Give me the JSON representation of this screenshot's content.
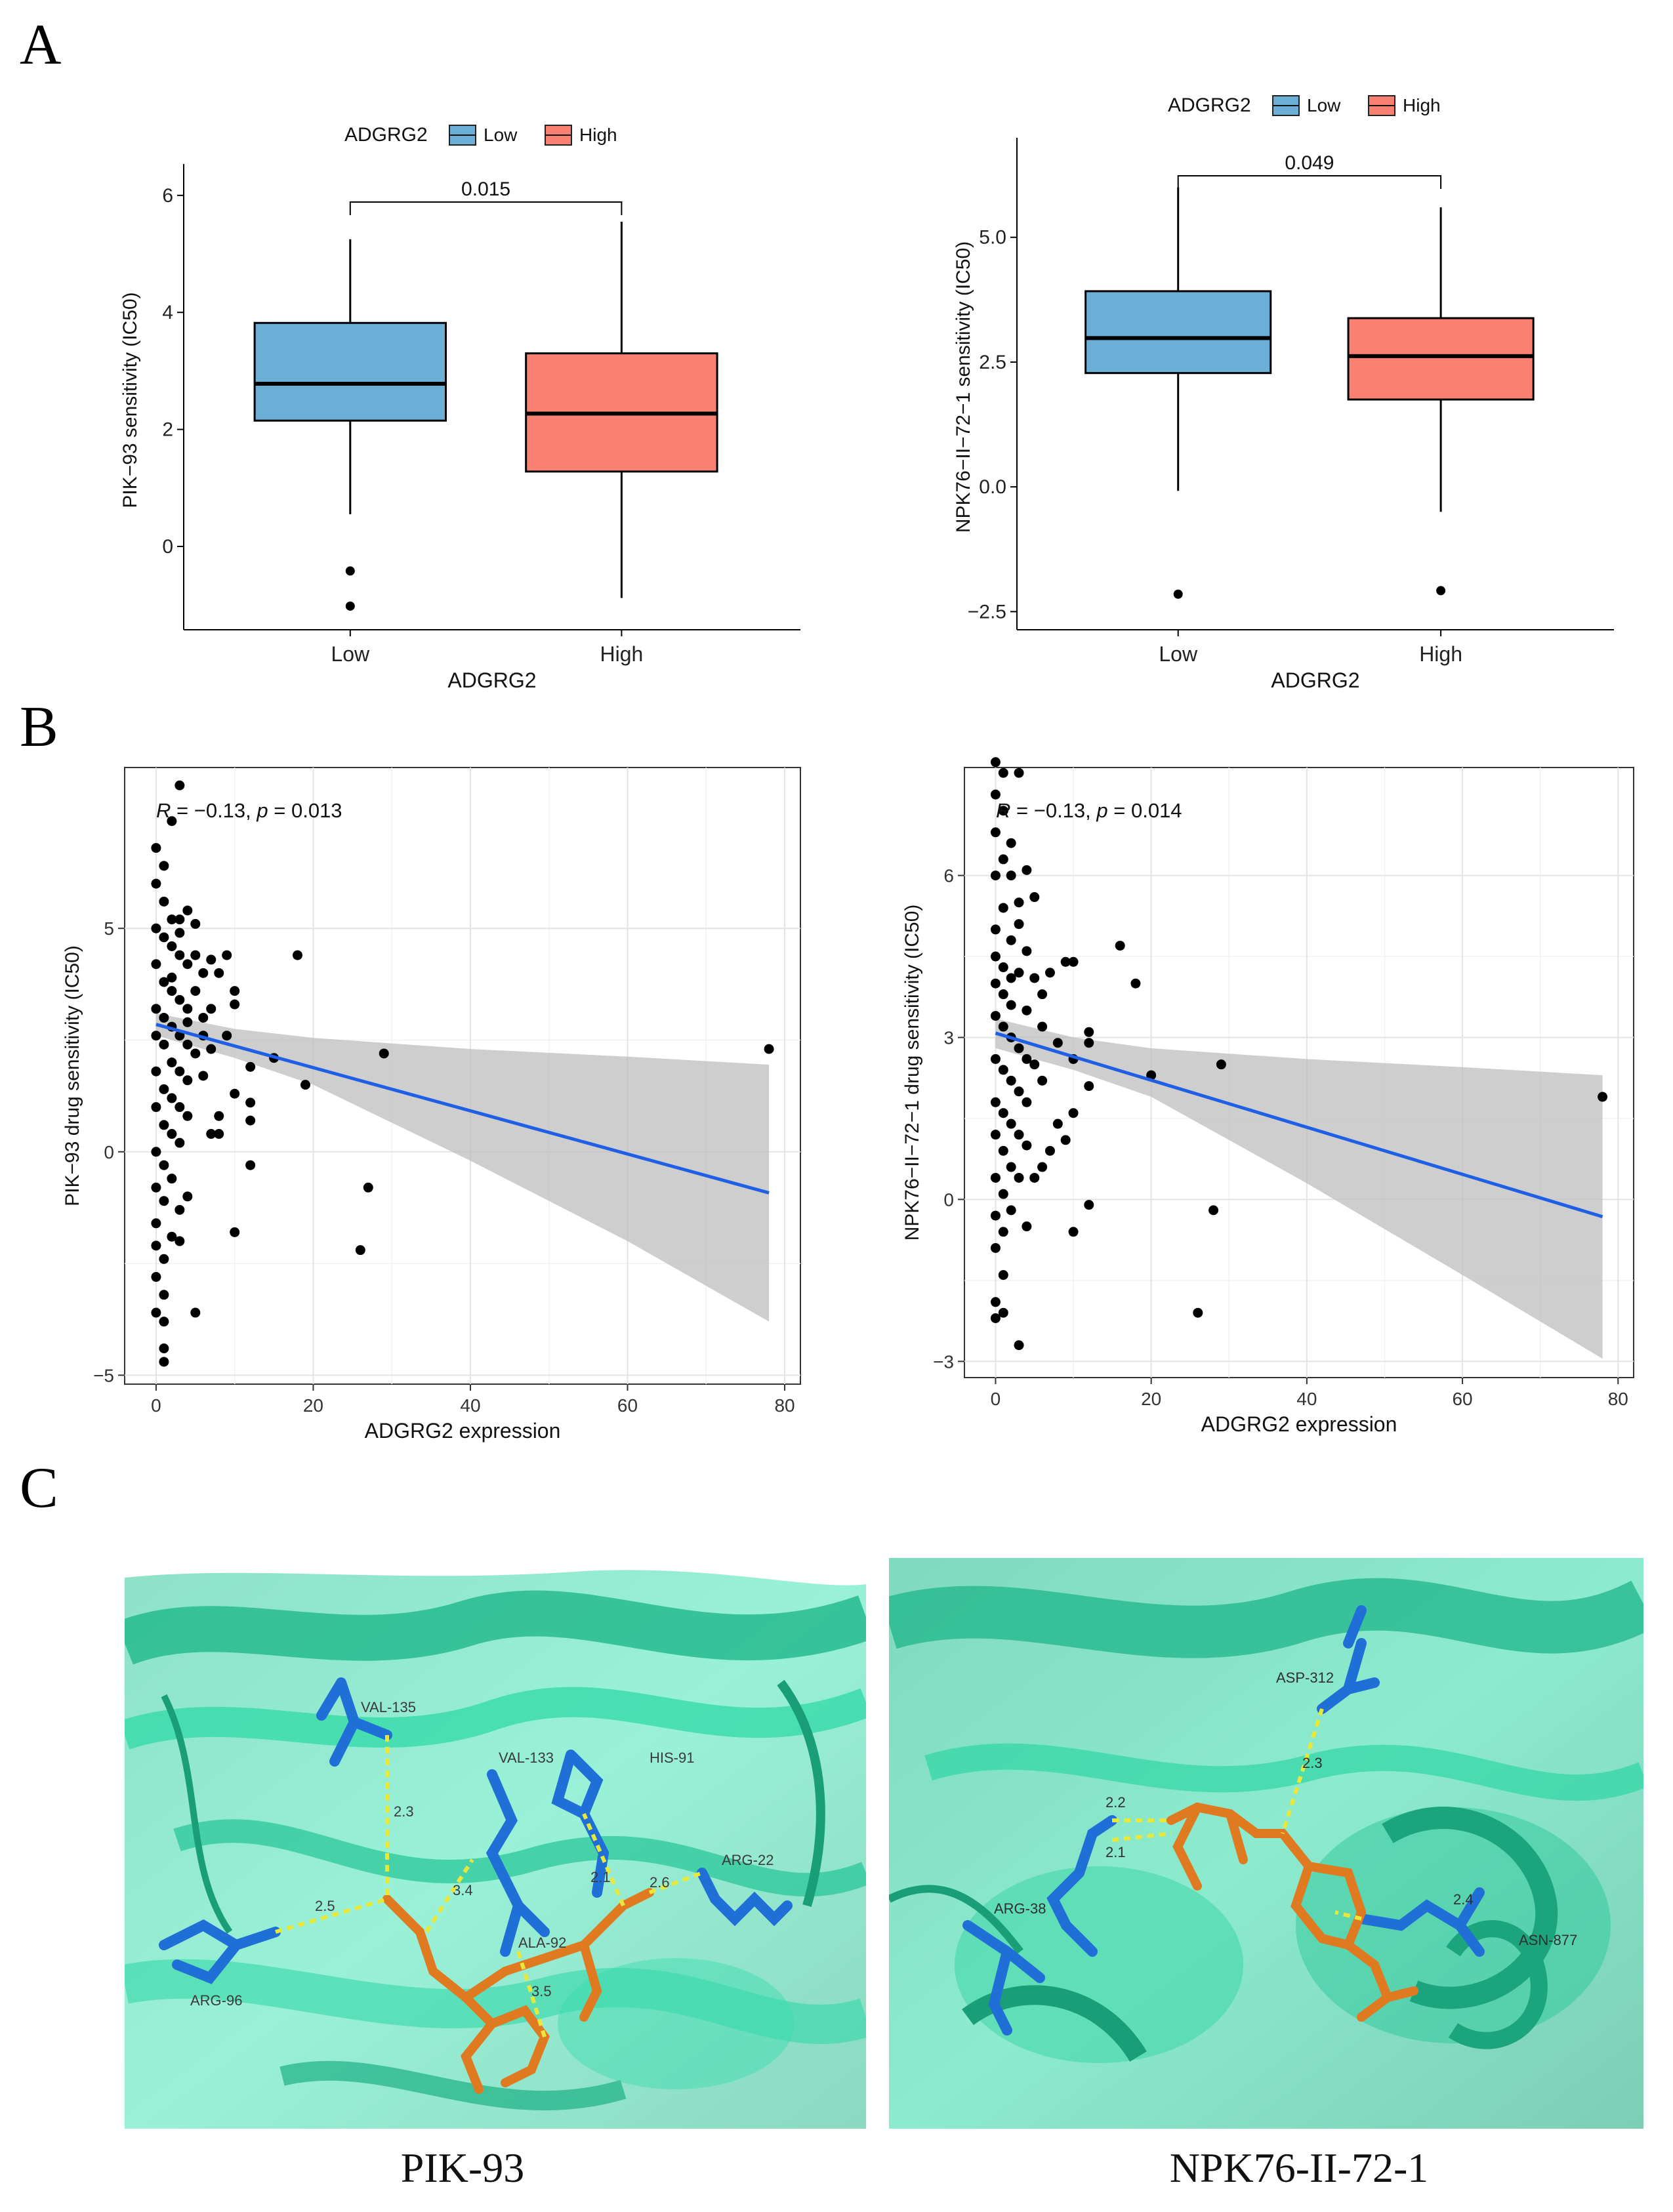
{
  "panels": {
    "a": "A",
    "b": "B",
    "c": "C"
  },
  "colors": {
    "low": "#6BAED6",
    "high": "#FA8072",
    "line": "#1F5FE6",
    "band": "#BEBEBE",
    "protein": "#3EE0B0",
    "residue": "#1F6FD6",
    "ligand": "#E07A20",
    "hbond": "#E8E83A"
  },
  "chart_data": [
    {
      "type": "box",
      "id": "A1",
      "legend_title": "ADGRG2",
      "legend_items": [
        "Low",
        "High"
      ],
      "categories": [
        "Low",
        "High"
      ],
      "xlabel": "ADGRG2",
      "ylabel": "PIK−93 sensitivity (IC50)",
      "ylim": [
        -1.2,
        6.2
      ],
      "yticks": [
        {
          "v": 0,
          "label": "0"
        },
        {
          "v": 2,
          "label": "2"
        },
        {
          "v": 4,
          "label": "4"
        },
        {
          "v": 6,
          "label": "6"
        }
      ],
      "boxes": [
        {
          "name": "Low",
          "whisker_low": 0.55,
          "q1": 2.15,
          "median": 2.78,
          "q3": 3.82,
          "whisker_high": 5.25,
          "outliers": [
            -0.42,
            -1.02
          ]
        },
        {
          "name": "High",
          "whisker_low": -0.88,
          "q1": 1.28,
          "median": 2.27,
          "q3": 3.3,
          "whisker_high": 5.55,
          "outliers": []
        }
      ],
      "pvalue": "0.015"
    },
    {
      "type": "box",
      "id": "A2",
      "legend_title": "ADGRG2",
      "legend_items": [
        "Low",
        "High"
      ],
      "categories": [
        "Low",
        "High"
      ],
      "xlabel": "ADGRG2",
      "ylabel": "NPK76−II−72−1 sensitivity (IC50)",
      "ylim": [
        -2.6,
        6.6
      ],
      "yticks": [
        {
          "v": -2.5,
          "label": "−2.5"
        },
        {
          "v": 0,
          "label": "0.0"
        },
        {
          "v": 2.5,
          "label": "2.5"
        },
        {
          "v": 5,
          "label": "5.0"
        }
      ],
      "boxes": [
        {
          "name": "Low",
          "whisker_low": -0.08,
          "q1": 2.28,
          "median": 2.98,
          "q3": 3.92,
          "whisker_high": 6.0,
          "outliers": [
            -2.15
          ]
        },
        {
          "name": "High",
          "whisker_low": -0.5,
          "q1": 1.75,
          "median": 2.62,
          "q3": 3.38,
          "whisker_high": 5.6,
          "outliers": [
            -2.08
          ]
        }
      ],
      "pvalue": "0.049"
    },
    {
      "type": "scatter",
      "id": "B1",
      "xlabel": "ADGRG2 expression",
      "ylabel": "PIK−93  drug sensitivity (IC50)",
      "annotation": {
        "r_symbol": "R",
        "r_text": " = −0.13, ",
        "p_symbol": "p",
        "p_text": " = 0.013"
      },
      "xlim": [
        -4,
        82
      ],
      "ylim": [
        -5.2,
        8.6
      ],
      "xticks": [
        0,
        20,
        40,
        60,
        80
      ],
      "yticks": [
        -5,
        0,
        5
      ],
      "fit": {
        "x0": 0,
        "y0": 2.85,
        "x1": 78,
        "y1": -0.92
      },
      "band_upper": [
        [
          0,
          3.1
        ],
        [
          10,
          2.75
        ],
        [
          20,
          2.55
        ],
        [
          40,
          2.3
        ],
        [
          60,
          2.13
        ],
        [
          78,
          1.95
        ]
      ],
      "band_lower": [
        [
          0,
          2.6
        ],
        [
          10,
          2.1
        ],
        [
          20,
          1.5
        ],
        [
          40,
          -0.2
        ],
        [
          60,
          -2.0
        ],
        [
          78,
          -3.8
        ]
      ],
      "points": [
        [
          3,
          8.2
        ],
        [
          2,
          7.4
        ],
        [
          0,
          6.8
        ],
        [
          1,
          6.4
        ],
        [
          0,
          6.0
        ],
        [
          1,
          5.6
        ],
        [
          2,
          5.2
        ],
        [
          3,
          5.2
        ],
        [
          4,
          5.4
        ],
        [
          0,
          5.0
        ],
        [
          1,
          4.8
        ],
        [
          2,
          4.6
        ],
        [
          3,
          4.4
        ],
        [
          4,
          4.2
        ],
        [
          5,
          4.4
        ],
        [
          7,
          4.3
        ],
        [
          8,
          4.0
        ],
        [
          9,
          4.4
        ],
        [
          0,
          4.2
        ],
        [
          1,
          3.8
        ],
        [
          2,
          3.6
        ],
        [
          3,
          3.4
        ],
        [
          4,
          3.2
        ],
        [
          5,
          3.6
        ],
        [
          6,
          3.0
        ],
        [
          7,
          3.2
        ],
        [
          0,
          3.2
        ],
        [
          1,
          3.0
        ],
        [
          2,
          2.8
        ],
        [
          3,
          2.6
        ],
        [
          4,
          2.4
        ],
        [
          5,
          2.2
        ],
        [
          0,
          2.6
        ],
        [
          1,
          2.4
        ],
        [
          2,
          2.0
        ],
        [
          3,
          1.8
        ],
        [
          4,
          1.6
        ],
        [
          0,
          1.8
        ],
        [
          1,
          1.4
        ],
        [
          2,
          1.2
        ],
        [
          3,
          1.0
        ],
        [
          4,
          0.8
        ],
        [
          0,
          1.0
        ],
        [
          1,
          0.6
        ],
        [
          2,
          0.4
        ],
        [
          3,
          0.2
        ],
        [
          0,
          0.0
        ],
        [
          1,
          -0.3
        ],
        [
          2,
          -0.6
        ],
        [
          0,
          -0.8
        ],
        [
          1,
          -1.1
        ],
        [
          3,
          -1.3
        ],
        [
          0,
          -1.6
        ],
        [
          2,
          -1.9
        ],
        [
          0,
          -2.1
        ],
        [
          1,
          -2.4
        ],
        [
          0,
          -2.8
        ],
        [
          1,
          -3.2
        ],
        [
          0,
          -3.6
        ],
        [
          1,
          -3.8
        ],
        [
          1,
          -4.4
        ],
        [
          1,
          -4.7
        ],
        [
          5,
          -3.6
        ],
        [
          3,
          -2.0
        ],
        [
          4,
          -1.0
        ],
        [
          7,
          2.3
        ],
        [
          8,
          0.8
        ],
        [
          8,
          0.4
        ],
        [
          9,
          2.6
        ],
        [
          10,
          3.6
        ],
        [
          10,
          3.3
        ],
        [
          10,
          1.3
        ],
        [
          10,
          -1.8
        ],
        [
          12,
          1.9
        ],
        [
          12,
          1.1
        ],
        [
          12,
          0.7
        ],
        [
          12,
          -0.3
        ],
        [
          15,
          2.1
        ],
        [
          18,
          4.4
        ],
        [
          19,
          1.5
        ],
        [
          26,
          -2.2
        ],
        [
          27,
          -0.8
        ],
        [
          29,
          2.2
        ],
        [
          78,
          2.3
        ],
        [
          6,
          4.0
        ],
        [
          6,
          1.7
        ],
        [
          7,
          0.4
        ],
        [
          3,
          4.9
        ],
        [
          5,
          5.1
        ],
        [
          2,
          3.9
        ],
        [
          4,
          2.9
        ],
        [
          6,
          2.6
        ]
      ]
    },
    {
      "type": "scatter",
      "id": "B2",
      "xlabel": "ADGRG2 expression",
      "ylabel": "NPK76−II−72−1  drug sensitivity (IC50)",
      "annotation": {
        "r_symbol": "R",
        "r_text": " = −0.13, ",
        "p_symbol": "p",
        "p_text": " = 0.014"
      },
      "xlim": [
        -4,
        82
      ],
      "ylim": [
        -3.3,
        8.0
      ],
      "xticks": [
        0,
        20,
        40,
        60,
        80
      ],
      "yticks": [
        -3,
        0,
        3,
        6
      ],
      "fit": {
        "x0": 0,
        "y0": 3.08,
        "x1": 78,
        "y1": -0.32
      },
      "band_upper": [
        [
          0,
          3.35
        ],
        [
          10,
          3.0
        ],
        [
          20,
          2.8
        ],
        [
          40,
          2.6
        ],
        [
          60,
          2.45
        ],
        [
          78,
          2.3
        ]
      ],
      "band_lower": [
        [
          0,
          2.8
        ],
        [
          10,
          2.4
        ],
        [
          20,
          1.9
        ],
        [
          40,
          0.3
        ],
        [
          60,
          -1.4
        ],
        [
          78,
          -2.95
        ]
      ],
      "points": [
        [
          0,
          8.1
        ],
        [
          1,
          7.9
        ],
        [
          3,
          7.9
        ],
        [
          0,
          7.5
        ],
        [
          1,
          7.2
        ],
        [
          0,
          6.8
        ],
        [
          2,
          6.6
        ],
        [
          1,
          6.3
        ],
        [
          0,
          6.0
        ],
        [
          2,
          6.0
        ],
        [
          4,
          6.1
        ],
        [
          5,
          5.6
        ],
        [
          1,
          5.4
        ],
        [
          3,
          5.1
        ],
        [
          0,
          5.0
        ],
        [
          2,
          4.8
        ],
        [
          4,
          4.6
        ],
        [
          0,
          4.5
        ],
        [
          1,
          4.3
        ],
        [
          3,
          4.2
        ],
        [
          5,
          4.1
        ],
        [
          7,
          4.2
        ],
        [
          0,
          4.0
        ],
        [
          1,
          3.8
        ],
        [
          2,
          3.6
        ],
        [
          4,
          3.5
        ],
        [
          6,
          3.8
        ],
        [
          0,
          3.4
        ],
        [
          1,
          3.2
        ],
        [
          2,
          3.0
        ],
        [
          3,
          2.8
        ],
        [
          4,
          2.6
        ],
        [
          5,
          2.5
        ],
        [
          0,
          2.6
        ],
        [
          1,
          2.4
        ],
        [
          2,
          2.2
        ],
        [
          3,
          2.0
        ],
        [
          4,
          1.8
        ],
        [
          0,
          1.8
        ],
        [
          1,
          1.6
        ],
        [
          2,
          1.4
        ],
        [
          3,
          1.2
        ],
        [
          4,
          1.0
        ],
        [
          0,
          1.2
        ],
        [
          1,
          0.9
        ],
        [
          2,
          0.6
        ],
        [
          3,
          0.4
        ],
        [
          0,
          0.4
        ],
        [
          1,
          0.1
        ],
        [
          2,
          -0.2
        ],
        [
          0,
          -0.3
        ],
        [
          1,
          -0.6
        ],
        [
          4,
          -0.5
        ],
        [
          0,
          -0.9
        ],
        [
          1,
          -1.4
        ],
        [
          0,
          -1.9
        ],
        [
          1,
          -2.1
        ],
        [
          0,
          -2.2
        ],
        [
          3,
          -2.7
        ],
        [
          6,
          0.6
        ],
        [
          7,
          0.9
        ],
        [
          8,
          2.9
        ],
        [
          9,
          4.4
        ],
        [
          10,
          4.4
        ],
        [
          10,
          2.6
        ],
        [
          10,
          1.6
        ],
        [
          10,
          -0.6
        ],
        [
          12,
          3.1
        ],
        [
          12,
          2.9
        ],
        [
          12,
          2.1
        ],
        [
          12,
          -0.1
        ],
        [
          16,
          4.7
        ],
        [
          18,
          4.0
        ],
        [
          20,
          2.3
        ],
        [
          26,
          -2.1
        ],
        [
          28,
          -0.2
        ],
        [
          29,
          2.5
        ],
        [
          78,
          1.9
        ],
        [
          6,
          3.2
        ],
        [
          8,
          1.4
        ],
        [
          9,
          1.1
        ],
        [
          5,
          0.4
        ],
        [
          3,
          5.5
        ],
        [
          2,
          4.1
        ],
        [
          6,
          2.2
        ]
      ]
    }
  ],
  "docking": [
    {
      "caption": "PIK-93",
      "residues": [
        "VAL-135",
        "VAL-133",
        "HIS-91",
        "ARG-22",
        "ARG-96",
        "ALA-92"
      ],
      "distances": [
        "2.3",
        "2.5",
        "3.4",
        "2.1",
        "2.6",
        "3.5"
      ]
    },
    {
      "caption": "NPK76-II-72-1",
      "residues": [
        "ASP-312",
        "ARG-38",
        "ASN-877"
      ],
      "distances": [
        "2.2",
        "2.1",
        "2.3",
        "2.4"
      ]
    }
  ]
}
